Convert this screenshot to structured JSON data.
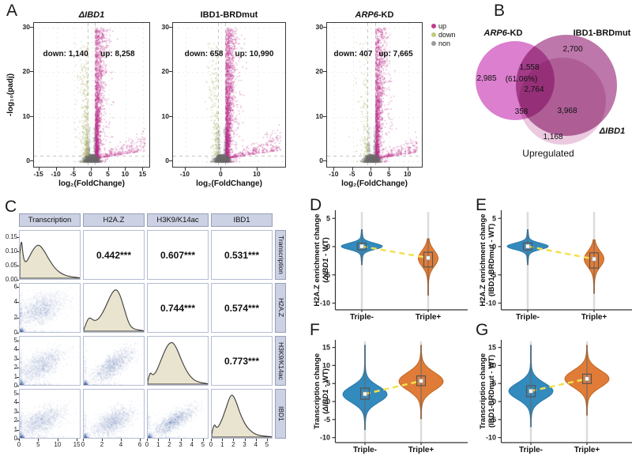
{
  "chart_data": {
    "panel_a": {
      "label": "A",
      "type": "volcano-scatter",
      "ylabel": "-log₁₀(padj)",
      "xlabel": "log₂(FoldChange)",
      "legend": [
        {
          "label": "up",
          "color": "#c03c8e"
        },
        {
          "label": "down",
          "color": "#c3c87e"
        },
        {
          "label": "non",
          "color": "#9a9a9a"
        }
      ],
      "plots": [
        {
          "title_parts": [
            [
              "ΔIBD1",
              1
            ]
          ],
          "down": 1140,
          "up": 8258,
          "down_text": "down: 1,140",
          "up_text": "up: 8,258",
          "xlim": [
            -16.5,
            16.5
          ],
          "xticks": [
            -15,
            -10,
            -5,
            0,
            5,
            10,
            15
          ],
          "yticks": [
            0,
            10,
            20,
            30
          ],
          "ylim": [
            0,
            30
          ],
          "seed": 7
        },
        {
          "title_parts": [
            [
              "IBD1-BRDmut",
              0
            ]
          ],
          "down": 658,
          "up": 10990,
          "down_text": "down: 658",
          "up_text": "up: 10,990",
          "xlim": [
            -13.5,
            17.5
          ],
          "xticks": [
            -10,
            0,
            10
          ],
          "yticks": [
            0,
            10,
            20,
            30
          ],
          "ylim": [
            0,
            30
          ],
          "seed": 8
        },
        {
          "title_parts": [
            [
              "ARP6",
              1
            ],
            [
              "-KD",
              0
            ]
          ],
          "down": 407,
          "up": 7665,
          "down_text": "down: 407",
          "up_text": "up: 7,665",
          "xlim": [
            -12,
            13.5
          ],
          "xticks": [
            -10,
            -5,
            0,
            5,
            10
          ],
          "yticks": [
            0,
            10,
            20,
            30
          ],
          "ylim": [
            0,
            30
          ],
          "seed": 9
        }
      ]
    },
    "panel_b": {
      "label": "B",
      "type": "venn",
      "caption": "Upregulated",
      "sets": [
        {
          "name_italic": "ARP6",
          "name_rest": "-KD",
          "color": "#d568c6"
        },
        {
          "name_italic": "",
          "name_rest": "IBD1-BRDmut",
          "color": "#b25f9b"
        },
        {
          "name_italic": "ΔIBD1",
          "name_rest": "",
          "color": "#e9c4dc"
        }
      ],
      "counts": {
        "arp6_only": "2,985",
        "arp6_brd": "1,558",
        "brd_only": "2,700",
        "center_pct": "(61.06%)",
        "center": "2,764",
        "brd_dibd": "3,968",
        "arp6_dibd": "358",
        "dibd_only": "1,168"
      }
    },
    "panel_c": {
      "label": "C",
      "type": "scatter-matrix",
      "vars": [
        {
          "name": "Transcription",
          "vmax": 16,
          "ticks": [
            0,
            5,
            10,
            15
          ],
          "mean": 5.5,
          "sd": 3.2,
          "density": [
            [
              0,
              0.55
            ],
            [
              0.025,
              1.0
            ],
            [
              0.055,
              0.52
            ],
            [
              0.09,
              0.36
            ],
            [
              0.14,
              0.44
            ],
            [
              0.2,
              0.62
            ],
            [
              0.27,
              0.76
            ],
            [
              0.33,
              0.78
            ],
            [
              0.4,
              0.66
            ],
            [
              0.47,
              0.48
            ],
            [
              0.55,
              0.3
            ],
            [
              0.63,
              0.17
            ],
            [
              0.72,
              0.09
            ],
            [
              0.82,
              0.04
            ],
            [
              1,
              0.01
            ]
          ]
        },
        {
          "name": "H2A.Z",
          "vmax": 6.5,
          "ticks": [
            0,
            2,
            4,
            6
          ],
          "mean": 3.1,
          "sd": 1.15,
          "density": [
            [
              0,
              0.03
            ],
            [
              0.06,
              0.28
            ],
            [
              0.11,
              0.32
            ],
            [
              0.17,
              0.24
            ],
            [
              0.25,
              0.28
            ],
            [
              0.35,
              0.52
            ],
            [
              0.45,
              0.85
            ],
            [
              0.53,
              1.0
            ],
            [
              0.6,
              0.88
            ],
            [
              0.68,
              0.5
            ],
            [
              0.75,
              0.18
            ],
            [
              0.82,
              0.05
            ],
            [
              1,
              0.01
            ]
          ]
        },
        {
          "name": "H3K9/K14ac",
          "vmax": 5.5,
          "ticks": [
            0,
            1,
            2,
            3,
            4,
            5
          ],
          "mean": 2.3,
          "sd": 1.0,
          "density": [
            [
              0,
              0.06
            ],
            [
              0.035,
              0.3
            ],
            [
              0.08,
              0.2
            ],
            [
              0.14,
              0.28
            ],
            [
              0.22,
              0.56
            ],
            [
              0.32,
              0.9
            ],
            [
              0.4,
              1.0
            ],
            [
              0.47,
              0.88
            ],
            [
              0.55,
              0.6
            ],
            [
              0.64,
              0.32
            ],
            [
              0.73,
              0.14
            ],
            [
              0.83,
              0.05
            ],
            [
              1,
              0.01
            ]
          ]
        },
        {
          "name": "IBD1",
          "vmax": 5.5,
          "ticks": [
            0,
            1,
            2,
            3,
            4,
            5
          ],
          "mean": 1.9,
          "sd": 0.85,
          "density": [
            [
              0,
              0.06
            ],
            [
              0.035,
              0.34
            ],
            [
              0.08,
              0.2
            ],
            [
              0.14,
              0.3
            ],
            [
              0.22,
              0.6
            ],
            [
              0.3,
              0.95
            ],
            [
              0.35,
              1.0
            ],
            [
              0.41,
              0.82
            ],
            [
              0.48,
              0.52
            ],
            [
              0.57,
              0.26
            ],
            [
              0.68,
              0.1
            ],
            [
              0.8,
              0.03
            ],
            [
              1,
              0.01
            ]
          ]
        }
      ],
      "density_ticks": [
        [
          "0.00",
          0
        ],
        [
          "0.05",
          0.286
        ],
        [
          "0.10",
          0.571
        ],
        [
          "0.15",
          0.857
        ]
      ],
      "corr_pairs": [
        {
          "i": 0,
          "j": 1,
          "text": "0.442***",
          "r": 0.442
        },
        {
          "i": 0,
          "j": 2,
          "text": "0.607***",
          "r": 0.607
        },
        {
          "i": 0,
          "j": 3,
          "text": "0.531***",
          "r": 0.531
        },
        {
          "i": 1,
          "j": 2,
          "text": "0.744***",
          "r": 0.744
        },
        {
          "i": 1,
          "j": 3,
          "text": "0.574***",
          "r": 0.574
        },
        {
          "i": 2,
          "j": 3,
          "text": "0.773***",
          "r": 0.773
        }
      ]
    },
    "violin_panels": [
      {
        "label": "D",
        "ylabel1": "H2A.Z enrichment change",
        "ylabel2_parts": [
          [
            "(",
            0
          ],
          [
            "ΔIBD1",
            1
          ],
          [
            " - WT)",
            0
          ]
        ],
        "yticks": [
          5,
          0,
          -5,
          -10
        ],
        "categories": [
          "Triple-",
          "Triple+"
        ],
        "groups": [
          {
            "category": "Triple-",
            "color": "#338abd",
            "stroke": "#2a78a8",
            "center": 0.05,
            "s1": 0.55,
            "w1": 24,
            "s2": 1.7,
            "w2": 2,
            "range": [
              -3.2,
              3.0
            ],
            "box": [
              -0.6,
              0.6
            ],
            "median": 0.05
          },
          {
            "category": "Triple+",
            "color": "#e07c38",
            "stroke": "#c4661f",
            "center": -2.1,
            "s1": 1.35,
            "w1": 11,
            "s2": 2.8,
            "w2": 1.5,
            "range": [
              -8.6,
              1.4
            ],
            "box": [
              -3.6,
              -1.0
            ],
            "median": -2.0
          }
        ]
      },
      {
        "label": "E",
        "ylabel1": "H2A.Z enrichment change",
        "ylabel2_parts": [
          [
            "(IBD1-BRDmut - WT)",
            0
          ]
        ],
        "yticks": [
          5,
          0,
          -5,
          -10
        ],
        "categories": [
          "Triple-",
          "Triple+"
        ],
        "groups": [
          {
            "category": "Triple-",
            "color": "#338abd",
            "stroke": "#2a78a8",
            "center": 0.05,
            "s1": 0.55,
            "w1": 24,
            "s2": 1.7,
            "w2": 2,
            "range": [
              -3.2,
              3.0
            ],
            "box": [
              -0.6,
              0.65
            ],
            "median": 0.05
          },
          {
            "category": "Triple+",
            "color": "#e07c38",
            "stroke": "#c4661f",
            "center": -2.2,
            "s1": 1.35,
            "w1": 11,
            "s2": 2.8,
            "w2": 1.5,
            "range": [
              -8.3,
              1.2
            ],
            "box": [
              -3.8,
              -1.1
            ],
            "median": -2.2
          }
        ]
      },
      {
        "label": "F",
        "ylabel1": "Transcription change",
        "ylabel2_parts": [
          [
            "(",
            0
          ],
          [
            "ΔIBD1",
            1
          ],
          [
            " - WT)",
            0
          ]
        ],
        "yticks": [
          15,
          10,
          5,
          0,
          -5,
          -10
        ],
        "categories": [
          "Triple-",
          "Triple+"
        ],
        "groups": [
          {
            "category": "Triple-",
            "color": "#338abd",
            "stroke": "#2a78a8",
            "center": 2.0,
            "s1": 2.2,
            "w1": 26,
            "s2": 4.5,
            "w2": 2,
            "range": [
              -7.8,
              15.6
            ],
            "box": [
              0.6,
              3.7
            ],
            "median": 2.1
          },
          {
            "category": "Triple+",
            "color": "#e07c38",
            "stroke": "#c4661f",
            "center": 5.6,
            "s1": 2.4,
            "w1": 26,
            "s2": 4.5,
            "w2": 2,
            "range": [
              -4.8,
              15.6
            ],
            "box": [
              4.4,
              7.1
            ],
            "median": 5.7
          }
        ]
      },
      {
        "label": "G",
        "ylabel1": "Transcription change",
        "ylabel2_parts": [
          [
            "(IBD1-BRDmut - WT)",
            0
          ]
        ],
        "yticks": [
          15,
          10,
          5,
          0,
          -5,
          -10
        ],
        "categories": [
          "Triple-",
          "Triple+"
        ],
        "groups": [
          {
            "category": "Triple-",
            "color": "#338abd",
            "stroke": "#2a78a8",
            "center": 2.9,
            "s1": 2.2,
            "w1": 26,
            "s2": 4.5,
            "w2": 2,
            "range": [
              -7.0,
              15.6
            ],
            "box": [
              1.3,
              4.4
            ],
            "median": 2.9
          },
          {
            "category": "Triple+",
            "color": "#e07c38",
            "stroke": "#c4661f",
            "center": 6.3,
            "s1": 2.3,
            "w1": 26,
            "s2": 4.5,
            "w2": 2,
            "range": [
              -3.8,
              15.6
            ],
            "box": [
              5.0,
              7.6
            ],
            "median": 6.3
          }
        ]
      }
    ],
    "trend_color": "#f2e14e",
    "scatter_color": "#3b5ca8"
  }
}
